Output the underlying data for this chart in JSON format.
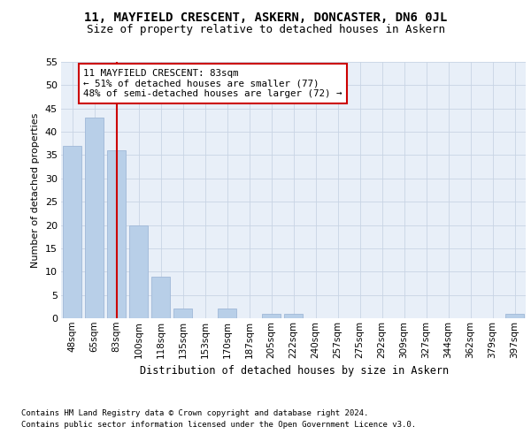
{
  "title1": "11, MAYFIELD CRESCENT, ASKERN, DONCASTER, DN6 0JL",
  "title2": "Size of property relative to detached houses in Askern",
  "xlabel": "Distribution of detached houses by size in Askern",
  "ylabel": "Number of detached properties",
  "categories": [
    "48sqm",
    "65sqm",
    "83sqm",
    "100sqm",
    "118sqm",
    "135sqm",
    "153sqm",
    "170sqm",
    "187sqm",
    "205sqm",
    "222sqm",
    "240sqm",
    "257sqm",
    "275sqm",
    "292sqm",
    "309sqm",
    "327sqm",
    "344sqm",
    "362sqm",
    "379sqm",
    "397sqm"
  ],
  "values": [
    37,
    43,
    36,
    20,
    9,
    2,
    0,
    2,
    0,
    1,
    1,
    0,
    0,
    0,
    0,
    0,
    0,
    0,
    0,
    0,
    1
  ],
  "bar_color": "#b8cfe8",
  "bar_edge_color": "#a0b8d8",
  "highlight_index": 2,
  "annotation_text": "11 MAYFIELD CRESCENT: 83sqm\n← 51% of detached houses are smaller (77)\n48% of semi-detached houses are larger (72) →",
  "annotation_box_color": "#ffffff",
  "annotation_box_edge_color": "#cc0000",
  "ylim": [
    0,
    55
  ],
  "yticks": [
    0,
    5,
    10,
    15,
    20,
    25,
    30,
    35,
    40,
    45,
    50,
    55
  ],
  "background_color": "#ffffff",
  "plot_bg_color": "#e8eff8",
  "grid_color": "#c8d4e4",
  "red_line_color": "#cc0000",
  "footer_line1": "Contains HM Land Registry data © Crown copyright and database right 2024.",
  "footer_line2": "Contains public sector information licensed under the Open Government Licence v3.0."
}
